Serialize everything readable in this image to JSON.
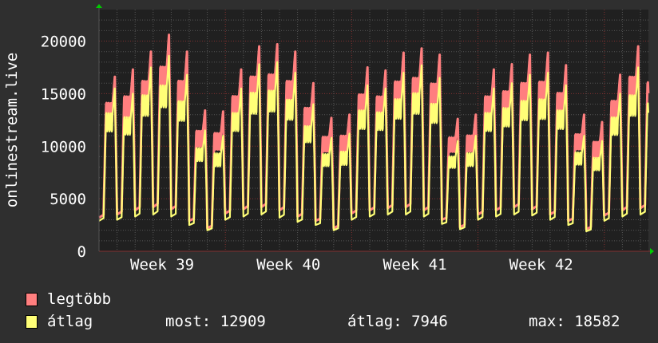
{
  "chart_data": {
    "type": "line",
    "ylabel": "onlinestream.live",
    "ylim": [
      0,
      23000
    ],
    "yticks": [
      0,
      5000,
      10000,
      15000,
      20000
    ],
    "ytick_labels": [
      "0",
      "5000",
      "10000",
      "15000",
      "20000"
    ],
    "xtick_labels": [
      "Week 39",
      "Week 40",
      "Week 41",
      "Week 42"
    ],
    "grid": true,
    "legend_placement": "bottom-left",
    "colors": {
      "background": "#2f2f2f",
      "plot": "#202020",
      "max": "#ff7f7f",
      "avg": "#ffff77",
      "grid": "#555555",
      "major_grid": "#803030",
      "arrow": "#00cc00"
    },
    "x_unit": "day",
    "series": [
      {
        "name": "legtöbb",
        "color": "#ff7f7f",
        "daily_peak": [
          16600,
          17300,
          19000,
          20600,
          19000,
          13400,
          13300,
          17300,
          19500,
          19700,
          19000,
          16000,
          12700,
          13000,
          17500,
          17200,
          18900,
          19300,
          18700,
          12600,
          13000,
          17300,
          17800,
          18700,
          18900,
          17700,
          13000,
          12300,
          16800,
          19500,
          18800
        ],
        "daily_min": [
          3200,
          3500,
          3900,
          4200,
          4000,
          2900,
          2200,
          3600,
          4000,
          4200,
          3900,
          3300,
          2900,
          2200,
          3600,
          3900,
          4100,
          4200,
          3900,
          3000,
          2300,
          3500,
          3900,
          4200,
          4000,
          3500,
          2900,
          2100,
          3400,
          3900,
          4100
        ]
      },
      {
        "name": "átlag",
        "color": "#ffff77",
        "daily_peak": [
          15500,
          15000,
          17500,
          18600,
          16800,
          11500,
          11000,
          15500,
          17800,
          18000,
          17000,
          14000,
          10800,
          11200,
          15800,
          15500,
          17000,
          17700,
          16500,
          10500,
          11000,
          15500,
          16000,
          16800,
          17000,
          15800,
          11000,
          10500,
          15000,
          17500,
          16500
        ],
        "daily_min": [
          2900,
          3000,
          3300,
          3500,
          3300,
          2500,
          2000,
          3000,
          3300,
          3500,
          3200,
          2800,
          2500,
          2000,
          3000,
          3300,
          3500,
          3500,
          3300,
          2600,
          2100,
          3000,
          3300,
          3500,
          3400,
          3000,
          2500,
          1900,
          2900,
          3300,
          3500
        ]
      }
    ],
    "legend": [
      {
        "label": "legtöbb",
        "color": "#ff7f7f"
      },
      {
        "label": "átlag",
        "color": "#ffff77"
      }
    ],
    "stats": {
      "most": "most: 12909",
      "atlag": "átlag: 7946",
      "max": "max: 18582"
    }
  }
}
